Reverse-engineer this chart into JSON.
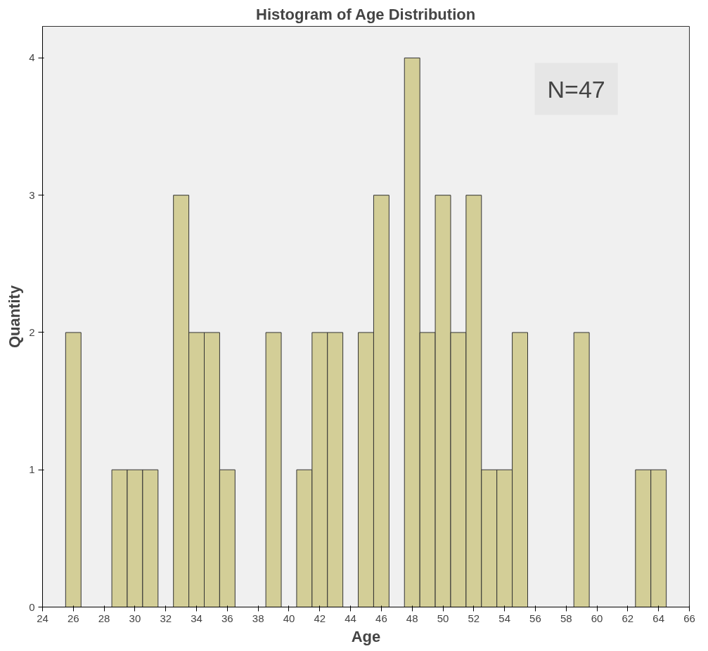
{
  "chart_data": {
    "type": "histogram",
    "title": "Histogram of Age Distribution",
    "xlabel": "Age",
    "ylabel": "Quantity",
    "annotations": [
      "N=47"
    ],
    "bins": [
      25.5,
      26.5,
      27.5,
      28.5,
      29.5,
      30.5,
      31.5,
      32.5,
      33.5,
      34.5,
      35.5,
      36.5,
      37.5,
      38.5,
      39.5,
      40.5,
      41.5,
      42.5,
      43.5,
      44.5,
      45.5,
      46.5,
      47.5,
      48.5,
      49.5,
      50.5,
      51.5,
      52.5,
      53.5,
      54.5,
      55.5,
      56.5,
      57.5,
      58.5,
      59.5,
      60.5,
      61.5,
      62.5,
      63.5,
      64.5
    ],
    "values": [
      2,
      0,
      0,
      1,
      1,
      1,
      0,
      3,
      2,
      2,
      1,
      0,
      0,
      2,
      0,
      1,
      2,
      2,
      0,
      2,
      3,
      0,
      4,
      2,
      3,
      2,
      3,
      1,
      1,
      2,
      0,
      0,
      0,
      2,
      0,
      0,
      0,
      1,
      1
    ],
    "color": "#d3ce97",
    "xlim": [
      24,
      66
    ],
    "xticks": [
      24,
      26,
      28,
      30,
      32,
      34,
      36,
      38,
      40,
      42,
      44,
      46,
      48,
      50,
      52,
      54,
      56,
      58,
      60,
      62,
      64,
      66
    ],
    "ylim": [
      0,
      4.23
    ],
    "yticks": [
      0,
      1,
      2,
      3,
      4
    ],
    "grid": false
  }
}
